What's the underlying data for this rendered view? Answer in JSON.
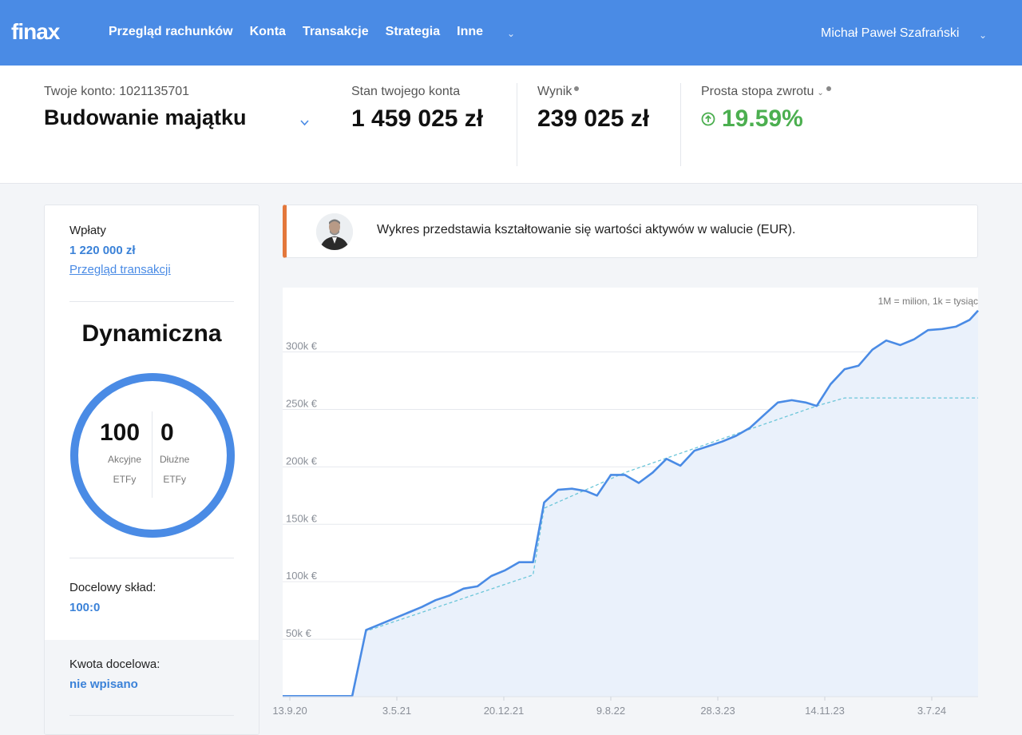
{
  "header": {
    "logo": "finax",
    "nav": [
      "Przegląd rachunków",
      "Konta",
      "Transakcje",
      "Strategia",
      "Inne"
    ],
    "user": "Michał Paweł Szafrański"
  },
  "account": {
    "label": "Twoje konto: 1021135701",
    "name": "Budowanie majątku",
    "balance_label": "Stan twojego konta",
    "balance": "1 459 025 zł",
    "result_label": "Wynik",
    "result": "239 025 zł",
    "return_label": "Prosta stopa zwrotu",
    "return": "19.59%"
  },
  "left_panel": {
    "deposits_label": "Wpłaty",
    "deposits": "1 220 000 zł",
    "transactions_link": "Przegląd transakcji",
    "strategy": "Dynamiczna",
    "equity_value": "100",
    "equity_label_1": "Akcyjne",
    "equity_label_2": "ETFy",
    "bond_value": "0",
    "bond_label_1": "Dłużne",
    "bond_label_2": "ETFy",
    "target_comp_label": "Docelowy skład:",
    "target_comp": "100:0",
    "target_amount_label": "Kwota docelowa:",
    "target_amount": "nie wpisano"
  },
  "notice": {
    "text": "Wykres przedstawia kształtowanie się wartości aktywów w walucie (EUR)."
  },
  "colors": {
    "brand": "#4a8be5",
    "positive": "#4caf50",
    "accent": "#e3773b"
  },
  "chart_data": {
    "type": "area",
    "note": "1M = milion, 1k = tysiąc",
    "y_ticks": [
      "50k €",
      "100k €",
      "150k €",
      "200k €",
      "250k €",
      "300k €"
    ],
    "x_ticks": [
      "13.9.20",
      "3.5.21",
      "20.12.21",
      "9.8.22",
      "28.3.23",
      "14.11.23",
      "3.7.24"
    ],
    "ylim": [
      0,
      340000
    ],
    "xlim": [
      0,
      24
    ],
    "grid": true,
    "series": [
      {
        "values": [
          [
            0,
            500
          ],
          [
            2.5,
            500
          ],
          [
            3.0,
            58000
          ],
          [
            3.5,
            63000
          ],
          [
            4.0,
            68000
          ],
          [
            4.5,
            73000
          ],
          [
            5.0,
            78000
          ],
          [
            5.5,
            84000
          ],
          [
            6.0,
            88000
          ],
          [
            6.5,
            94000
          ],
          [
            7.0,
            96000
          ],
          [
            7.5,
            105000
          ],
          [
            8.0,
            110000
          ],
          [
            8.5,
            117000
          ],
          [
            9.0,
            117000
          ],
          [
            9.4,
            169000
          ],
          [
            9.9,
            180000
          ],
          [
            10.4,
            181000
          ],
          [
            10.9,
            179000
          ],
          [
            11.3,
            175000
          ],
          [
            11.8,
            193000
          ],
          [
            12.3,
            193000
          ],
          [
            12.8,
            186000
          ],
          [
            13.3,
            195000
          ],
          [
            13.8,
            207000
          ],
          [
            14.3,
            201000
          ],
          [
            14.8,
            214000
          ],
          [
            15.3,
            218000
          ],
          [
            15.8,
            222000
          ],
          [
            16.3,
            227000
          ],
          [
            16.8,
            234000
          ],
          [
            17.3,
            245000
          ],
          [
            17.8,
            256000
          ],
          [
            18.3,
            258000
          ],
          [
            18.8,
            256000
          ],
          [
            19.2,
            253000
          ],
          [
            19.7,
            272000
          ],
          [
            20.2,
            285000
          ],
          [
            20.7,
            288000
          ],
          [
            21.2,
            302000
          ],
          [
            21.7,
            310000
          ],
          [
            22.2,
            306000
          ],
          [
            22.7,
            311000
          ],
          [
            23.2,
            319000
          ],
          [
            23.7,
            320000
          ],
          [
            24.2,
            322000
          ],
          [
            24.7,
            328000
          ],
          [
            25.0,
            336000
          ]
        ]
      },
      {
        "values": [
          [
            0,
            500
          ],
          [
            2.5,
            500
          ],
          [
            3.0,
            57000
          ],
          [
            9.0,
            106000
          ],
          [
            9.4,
            164000
          ],
          [
            12.3,
            195000
          ],
          [
            19.2,
            253000
          ],
          [
            20.2,
            260000
          ],
          [
            25.0,
            260000
          ]
        ]
      }
    ]
  }
}
